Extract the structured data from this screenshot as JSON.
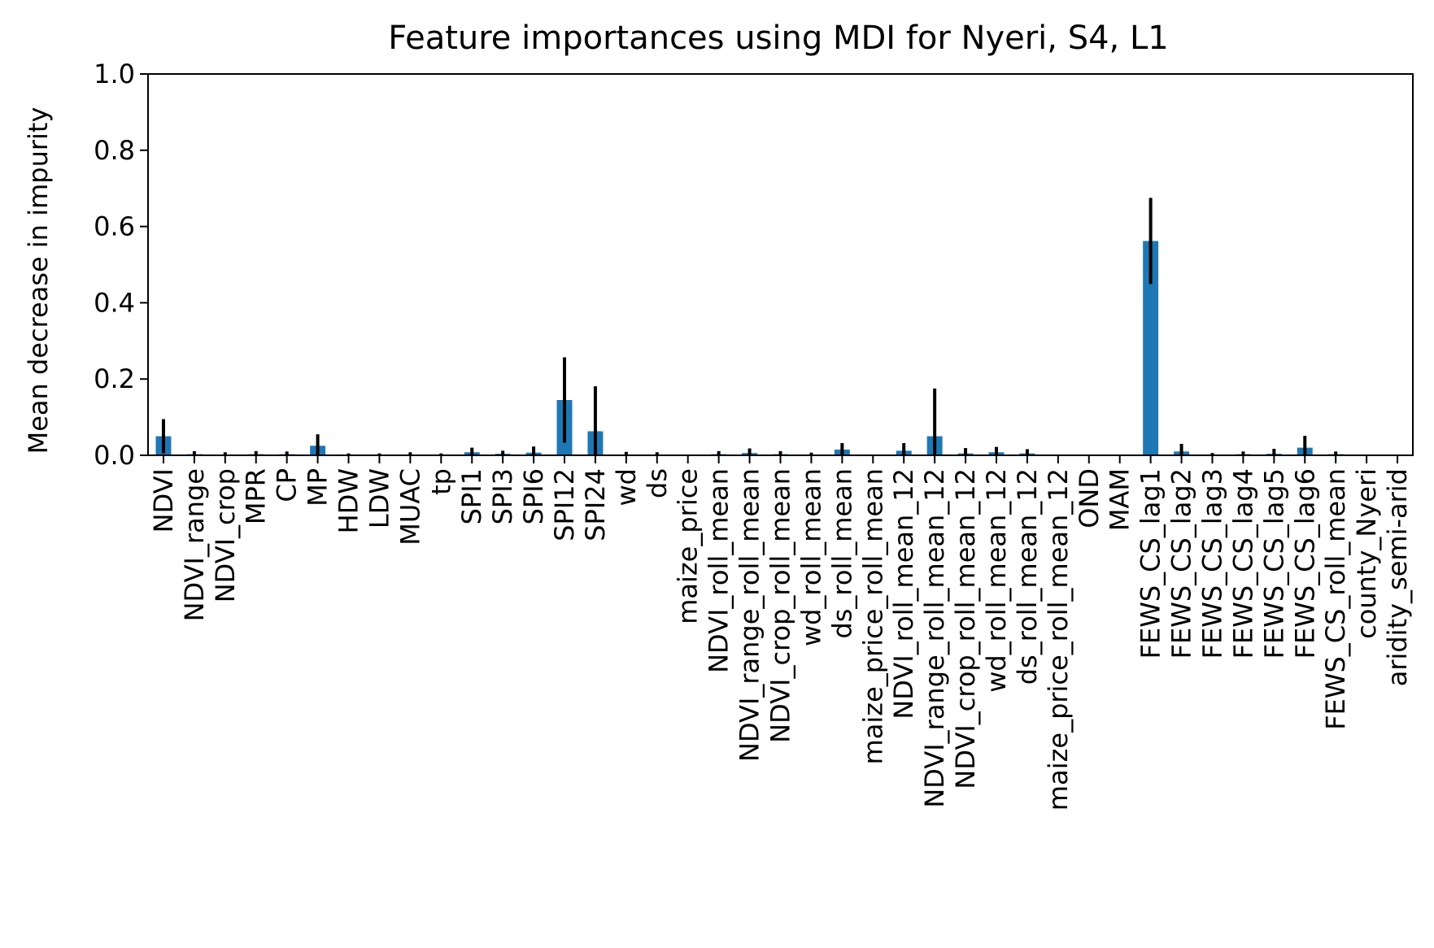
{
  "chart_data": {
    "type": "bar",
    "title": "Feature importances using MDI for Nyeri, S4, L1",
    "xlabel": "",
    "ylabel": "Mean decrease in impurity",
    "ylim": [
      0.0,
      1.0
    ],
    "yticks": [
      "0.0",
      "0.2",
      "0.4",
      "0.6",
      "0.8",
      "1.0"
    ],
    "grid": false,
    "bar_color": "#1f77b4",
    "error_bar_color": "#000000",
    "categories": [
      "NDVI",
      "NDVI_range",
      "NDVI_crop",
      "MPR",
      "CP",
      "MP",
      "HDW",
      "LDW",
      "MUAC",
      "tp",
      "SPI1",
      "SPI3",
      "SPI6",
      "SPI12",
      "SPI24",
      "wd",
      "ds",
      "maize_price",
      "NDVI_roll_mean",
      "NDVI_range_roll_mean",
      "NDVI_crop_roll_mean",
      "wd_roll_mean",
      "ds_roll_mean",
      "maize_price_roll_mean",
      "NDVI_roll_mean_12",
      "NDVI_range_roll_mean_12",
      "NDVI_crop_roll_mean_12",
      "wd_roll_mean_12",
      "ds_roll_mean_12",
      "maize_price_roll_mean_12",
      "OND",
      "MAM",
      "FEWS_CS_lag1",
      "FEWS_CS_lag2",
      "FEWS_CS_lag3",
      "FEWS_CS_lag4",
      "FEWS_CS_lag5",
      "FEWS_CS_lag6",
      "FEWS_CS_roll_mean",
      "county_Nyeri",
      "aridity_semi-arid"
    ],
    "values": [
      0.05,
      0.003,
      0.002,
      0.003,
      0.003,
      0.025,
      0.001,
      0.001,
      0.002,
      0.001,
      0.008,
      0.004,
      0.007,
      0.145,
      0.063,
      0.002,
      0.002,
      0.0,
      0.003,
      0.006,
      0.003,
      0.002,
      0.015,
      0.0,
      0.012,
      0.05,
      0.005,
      0.008,
      0.005,
      0.0,
      0.0,
      0.0,
      0.562,
      0.01,
      0.002,
      0.003,
      0.004,
      0.02,
      0.003,
      0.0,
      0.0
    ],
    "errors": [
      0.045,
      0.008,
      0.006,
      0.008,
      0.007,
      0.03,
      0.004,
      0.004,
      0.006,
      0.004,
      0.012,
      0.008,
      0.016,
      0.112,
      0.118,
      0.007,
      0.006,
      0.001,
      0.008,
      0.012,
      0.008,
      0.005,
      0.017,
      0.001,
      0.02,
      0.125,
      0.014,
      0.014,
      0.011,
      0.001,
      0.0,
      0.0,
      0.113,
      0.02,
      0.004,
      0.007,
      0.013,
      0.031,
      0.007,
      0.0,
      0.0
    ]
  }
}
